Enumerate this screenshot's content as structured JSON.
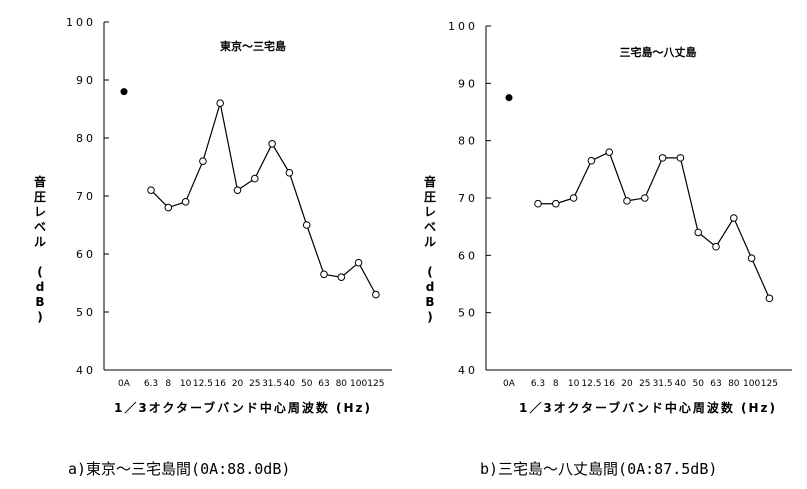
{
  "chart_data": [
    {
      "type": "line",
      "title": "東京〜三宅島",
      "xlabel": "1／3オクターブバンド中心周波数 (Hz)",
      "ylabel": "音圧レベル (dB)",
      "ylim": [
        40,
        100
      ],
      "yticks": [
        "40",
        "50",
        "60",
        "70",
        "80",
        "90",
        "100"
      ],
      "oa": {
        "label": "0A",
        "value": 88.0
      },
      "categories": [
        "6.3",
        "8",
        "10",
        "12.5",
        "16",
        "20",
        "25",
        "31.5",
        "40",
        "50",
        "63",
        "80",
        "100",
        "125"
      ],
      "values": [
        71,
        68,
        69,
        76,
        86,
        71,
        73,
        79,
        74,
        65,
        56.5,
        56,
        58.5,
        53
      ],
      "caption": "a)東京～三宅島間(0A:88.0dB)"
    },
    {
      "type": "line",
      "title": "三宅島〜八丈島",
      "xlabel": "1／3オクターブバンド中心周波数 (Hz)",
      "ylabel": "音圧レベル (dB)",
      "ylim": [
        40,
        100
      ],
      "yticks": [
        "40",
        "50",
        "60",
        "70",
        "80",
        "90",
        "100"
      ],
      "oa": {
        "label": "0A",
        "value": 87.5
      },
      "categories": [
        "6.3",
        "8",
        "10",
        "12.5",
        "16",
        "20",
        "25",
        "31.5",
        "40",
        "50",
        "63",
        "80",
        "100",
        "125"
      ],
      "values": [
        69,
        69,
        70,
        76.5,
        78,
        69.5,
        70,
        77,
        77,
        64,
        61.5,
        66.5,
        59.5,
        52.5
      ],
      "caption": "b)三宅島～八丈島間(0A:87.5dB)"
    }
  ]
}
